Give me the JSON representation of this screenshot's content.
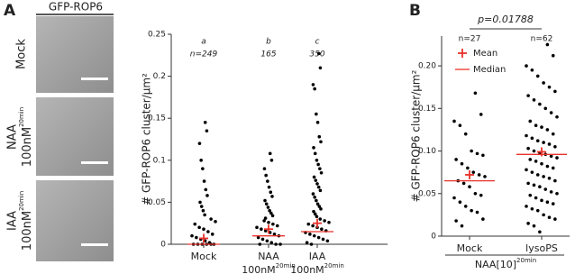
{
  "panel_labels": [
    "A",
    "B"
  ],
  "images": {
    "header": "GFP-ROP6",
    "rows": [
      {
        "label": "Mock"
      },
      {
        "label": "NAA",
        "line2": "100nM",
        "sup": "20min"
      },
      {
        "label": "IAA",
        "line2": "100nM",
        "sup": "20min"
      }
    ]
  },
  "chart_data": [
    {
      "type": "strip",
      "y_label": "# GFP-ROP6 cluster/μm²",
      "categories": [
        "Mock",
        "NAA",
        "IAA"
      ],
      "category_line2": [
        null,
        "100nM",
        "100nM"
      ],
      "category_sup": [
        null,
        "20min",
        "20min"
      ],
      "group_letters": [
        "a",
        "b",
        "c"
      ],
      "group_n": [
        "n=249",
        "165",
        "350"
      ],
      "ylim": [
        0,
        0.25
      ],
      "yticks": [
        0,
        0.05,
        0.1,
        0.15,
        0.2,
        0.25
      ],
      "point_color": "#000000",
      "stat_color": "#e8322a",
      "groups": [
        {
          "values": [
            0.145,
            0.135,
            0.12,
            0.1,
            0.09,
            0.075,
            0.065,
            0.058,
            0.05,
            0.045,
            0.04,
            0.035,
            0.03,
            0.027,
            0.024,
            0.02,
            0.018,
            0.015,
            0.012,
            0.01,
            0.008,
            0.006,
            0.004,
            0.002,
            0,
            0,
            0,
            0,
            0,
            0
          ],
          "mean": 0.007,
          "median": 0
        },
        {
          "values": [
            0.108,
            0.1,
            0.09,
            0.082,
            0.075,
            0.068,
            0.062,
            0.057,
            0.052,
            0.048,
            0.044,
            0.04,
            0.037,
            0.034,
            0.031,
            0.028,
            0.026,
            0.024,
            0.022,
            0.02,
            0.018,
            0.016,
            0.014,
            0.012,
            0.01,
            0.008,
            0.006,
            0.004,
            0.002,
            0,
            0,
            0
          ],
          "mean": 0.018,
          "median": 0.01
        },
        {
          "values": [
            0.227,
            0.21,
            0.19,
            0.185,
            0.155,
            0.145,
            0.128,
            0.122,
            0.115,
            0.108,
            0.1,
            0.095,
            0.09,
            0.085,
            0.08,
            0.076,
            0.072,
            0.068,
            0.064,
            0.06,
            0.056,
            0.052,
            0.048,
            0.045,
            0.042,
            0.039,
            0.036,
            0.033,
            0.03,
            0.028,
            0.026,
            0.024,
            0.022,
            0.02,
            0.018,
            0.016,
            0.014,
            0.012,
            0.01,
            0.008,
            0.006,
            0.004,
            0.002,
            0
          ],
          "mean": 0.025,
          "median": 0.015
        }
      ]
    },
    {
      "type": "strip",
      "y_label": "# GFP-ROP6 cluster/μm²",
      "p_value": "p=0.01788",
      "categories": [
        "Mock",
        "lysoPS"
      ],
      "group_n": [
        "n=27",
        "n=62"
      ],
      "x_label": "NAA[10]",
      "x_label_sup": "20min",
      "legend": [
        "Mean",
        "Median"
      ],
      "ylim": [
        0,
        0.235
      ],
      "yticks": [
        0,
        0.05,
        {
          "value": 0.1,
          "label": "0.10"
        },
        0.15,
        {
          "value": 0.2,
          "label": "0.20"
        }
      ],
      "point_color": "#000000",
      "stat_color": "#e8322a",
      "groups": [
        {
          "values": [
            0.168,
            0.143,
            0.135,
            0.13,
            0.12,
            0.1,
            0.097,
            0.095,
            0.09,
            0.085,
            0.08,
            0.075,
            0.072,
            0.07,
            0.065,
            0.062,
            0.058,
            0.05,
            0.048,
            0.045,
            0.04,
            0.035,
            0.03,
            0.028,
            0.02,
            0.018,
            0.012
          ],
          "mean": 0.072,
          "median": 0.065
        },
        {
          "values": [
            0.225,
            0.212,
            0.2,
            0.195,
            0.188,
            0.18,
            0.175,
            0.17,
            0.165,
            0.16,
            0.155,
            0.15,
            0.145,
            0.14,
            0.135,
            0.13,
            0.128,
            0.125,
            0.12,
            0.118,
            0.115,
            0.112,
            0.11,
            0.108,
            0.105,
            0.103,
            0.1,
            0.098,
            0.096,
            0.094,
            0.092,
            0.09,
            0.088,
            0.085,
            0.082,
            0.08,
            0.078,
            0.075,
            0.072,
            0.07,
            0.068,
            0.065,
            0.062,
            0.06,
            0.058,
            0.055,
            0.052,
            0.05,
            0.048,
            0.045,
            0.042,
            0.04,
            0.038,
            0.035,
            0.032,
            0.03,
            0.025,
            0.022,
            0.02,
            0.015,
            0.012,
            0.005
          ],
          "mean": 0.099,
          "median": 0.096
        }
      ]
    }
  ]
}
